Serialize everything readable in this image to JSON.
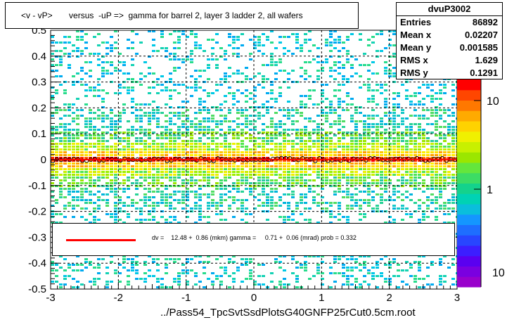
{
  "header": {
    "title": "<v - vP>       versus  -uP =>  gamma for barrel 2, layer 3 ladder 2, all wafers"
  },
  "stats": {
    "title": "dvuP3002",
    "rows": [
      {
        "label": "Entries",
        "value": "86892"
      },
      {
        "label": "Mean x",
        "value": "0.02207"
      },
      {
        "label": "Mean y",
        "value": "0.001585"
      },
      {
        "label": "RMS x",
        "value": "1.629"
      },
      {
        "label": "RMS y",
        "value": "0.1291"
      }
    ]
  },
  "legend": {
    "fit_text": "dv =    12.48 +  0.86 (mkm) gamma =     0.71 +  0.06 (mrad) prob = 0.332",
    "line_color": "#ff0000"
  },
  "footer": {
    "filename": "../Pass54_TpcSvtSsdPlotsG40GNFP25rCut0.5cm.root"
  },
  "chart_data": {
    "type": "heatmap",
    "title": "<v - vP>       versus  -uP =>  gamma for barrel 2, layer 3 ladder 2, all wafers",
    "xlabel": "",
    "ylabel": "",
    "xlim": [
      -3,
      3
    ],
    "ylim": [
      -0.5,
      0.5
    ],
    "x_ticks": [
      "-3",
      "-2",
      "-1",
      "0",
      "1",
      "2",
      "3"
    ],
    "y_ticks": [
      "-0.5",
      "-0.4",
      "-0.3",
      "-0.2",
      "-0.1",
      "0",
      "0.1",
      "0.2",
      "0.3",
      "0.4",
      "0.5"
    ],
    "grid": true,
    "colorbar": {
      "scale": "log",
      "ticks": [
        "1",
        "10"
      ],
      "partial_label": "10"
    },
    "band_center_y": 0.0,
    "fit": {
      "intercept_mkm": 12.48,
      "intercept_err_mkm": 0.86,
      "slope_mrad": 0.71,
      "slope_err_mrad": 0.06,
      "prob": 0.332
    }
  }
}
